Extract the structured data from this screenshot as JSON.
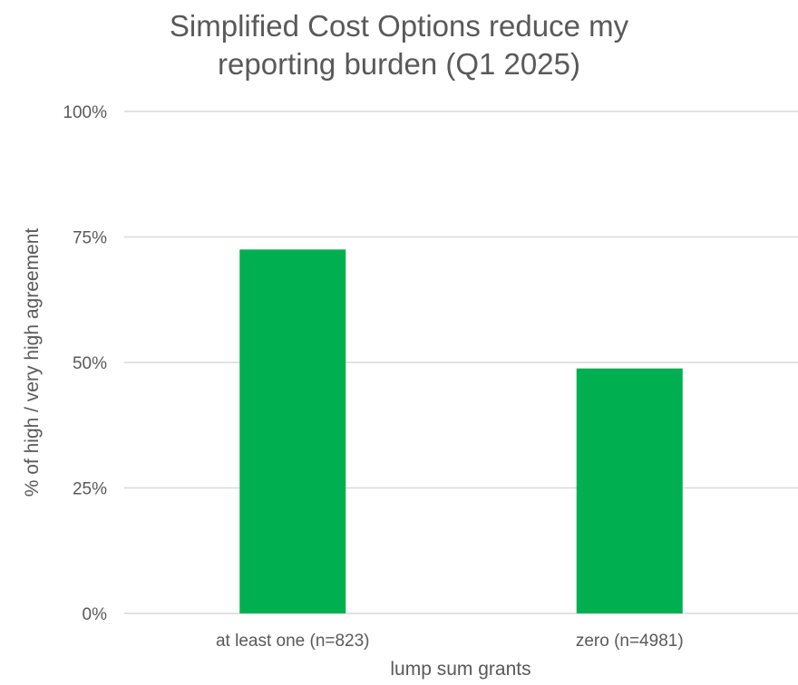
{
  "chart_data": {
    "type": "bar",
    "title_lines": [
      "Simplified Cost Options reduce my",
      "reporting burden (Q1 2025)"
    ],
    "xlabel": "lump sum grants",
    "ylabel": "% of high / very high agreement",
    "categories": [
      "at least one (n=823)",
      "zero (n=4981)"
    ],
    "values": [
      72.5,
      48.8
    ],
    "value_unit": "%",
    "ylim": [
      0,
      100
    ],
    "yticks": [
      0,
      25,
      50,
      75,
      100
    ],
    "ytick_labels": [
      "0%",
      "25%",
      "50%",
      "75%",
      "100%"
    ],
    "grid": true,
    "legend": "none",
    "colors": {
      "bar": "#00b050",
      "grid": "#d9d9d9",
      "text": "#595959"
    }
  }
}
